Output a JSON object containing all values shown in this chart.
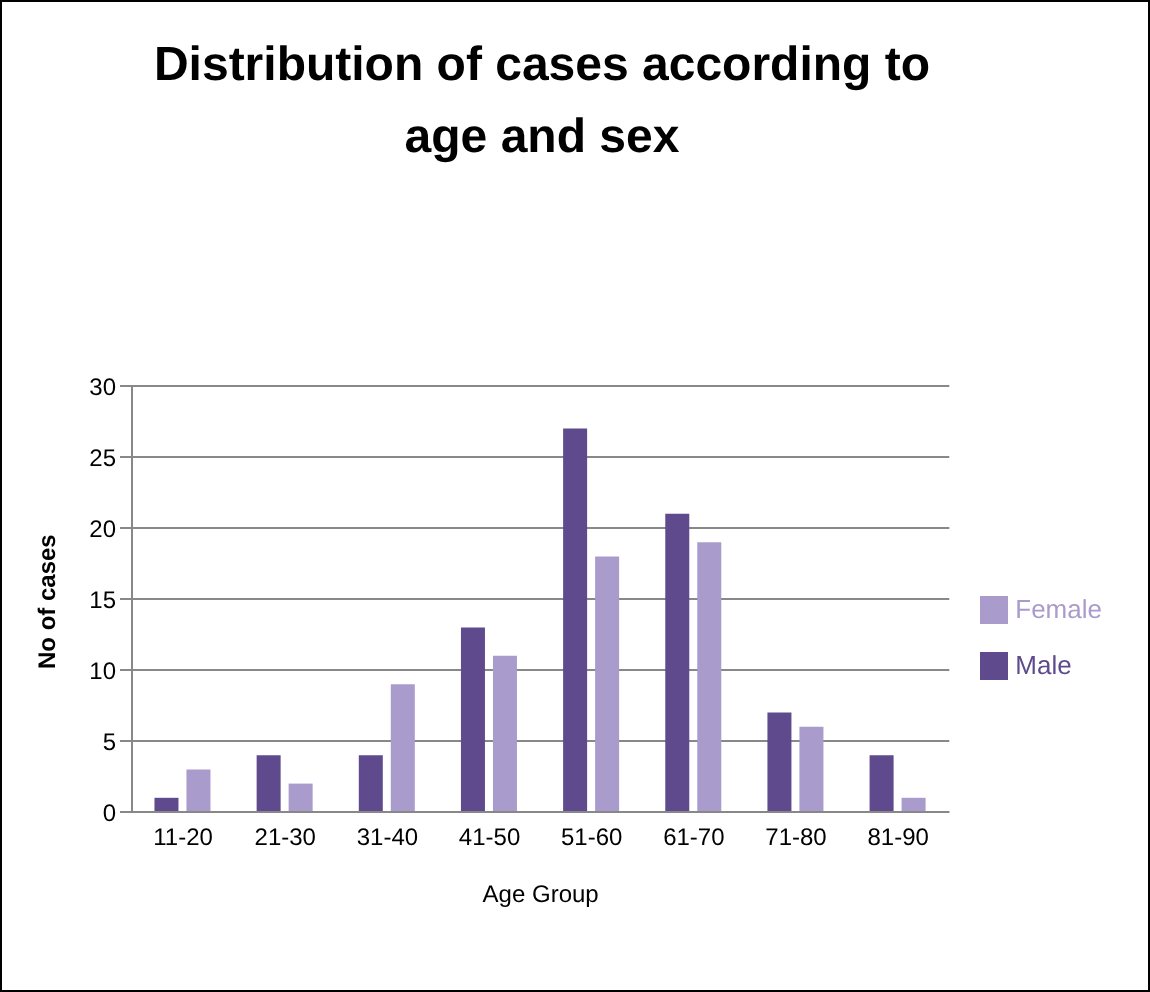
{
  "chart_data": {
    "type": "bar",
    "title": "Distribution of cases according to age and sex",
    "xlabel": "Age Group",
    "ylabel": "No of cases",
    "categories": [
      "11-20",
      "21-30",
      "31-40",
      "41-50",
      "51-60",
      "61-70",
      "71-80",
      "81-90"
    ],
    "series": [
      {
        "name": "Male",
        "color": "#5e4a8c",
        "values": [
          1,
          4,
          4,
          13,
          27,
          21,
          7,
          4
        ]
      },
      {
        "name": "Female",
        "color": "#a99bcb",
        "values": [
          3,
          2,
          9,
          11,
          18,
          19,
          6,
          1
        ]
      }
    ],
    "ylim": [
      0,
      30
    ],
    "yticks": [
      0,
      5,
      10,
      15,
      20,
      25,
      30
    ],
    "grid": "y",
    "legend": "right"
  }
}
